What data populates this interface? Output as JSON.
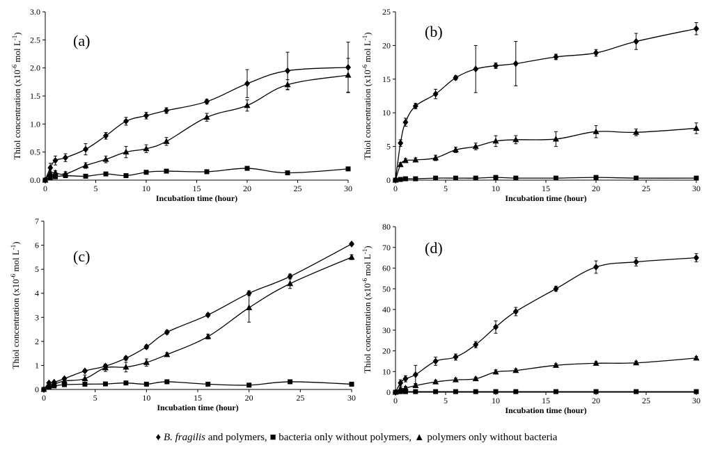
{
  "chart_data": [
    {
      "type": "line",
      "panel_label": "(a)",
      "xlabel": "Incubation time (hour)",
      "ylabel": "Thiol concentration (x10-6 mol L-1)",
      "ylabel_parts": [
        "Thiol concentration (x10",
        "-6",
        " mol L",
        "-1",
        ")"
      ],
      "xlim": [
        0,
        30
      ],
      "ylim": [
        0,
        3
      ],
      "xticks": [
        0,
        5,
        10,
        15,
        20,
        25,
        30
      ],
      "yticks": [
        0,
        0.5,
        1,
        1.5,
        2,
        2.5,
        3
      ],
      "ytick_labels": [
        "0.0",
        "0.5",
        "1.0",
        "1.5",
        "2.0",
        "2.5",
        "3.0"
      ],
      "series": [
        {
          "marker": "diamond",
          "x": [
            0,
            0.5,
            1,
            2,
            4,
            6,
            8,
            10,
            12,
            16,
            20,
            24,
            30
          ],
          "y": [
            0,
            0.22,
            0.35,
            0.4,
            0.55,
            0.79,
            1.05,
            1.15,
            1.24,
            1.4,
            1.72,
            1.95,
            2.01
          ],
          "err": [
            0,
            0.08,
            0.08,
            0.07,
            0.1,
            0.06,
            0.07,
            0.06,
            0.05,
            0.04,
            0.25,
            0.33,
            0.45
          ]
        },
        {
          "marker": "square",
          "x": [
            0,
            0.5,
            1,
            2,
            4,
            6,
            8,
            10,
            12,
            16,
            20,
            24,
            30
          ],
          "y": [
            0,
            0.05,
            0.06,
            0.08,
            0.07,
            0.11,
            0.08,
            0.14,
            0.16,
            0.15,
            0.21,
            0.13,
            0.2
          ],
          "err": [
            0,
            0,
            0,
            0,
            0,
            0,
            0,
            0,
            0,
            0,
            0,
            0,
            0
          ]
        },
        {
          "marker": "triangle",
          "x": [
            0,
            0.5,
            1,
            2,
            4,
            6,
            8,
            10,
            12,
            16,
            20,
            24,
            30
          ],
          "y": [
            0,
            0.12,
            0.13,
            0.11,
            0.26,
            0.37,
            0.5,
            0.56,
            0.69,
            1.12,
            1.33,
            1.7,
            1.87
          ],
          "err": [
            0,
            0.04,
            0.04,
            0.04,
            0.05,
            0.06,
            0.1,
            0.07,
            0.07,
            0.07,
            0.1,
            0.09,
            0.3
          ]
        }
      ]
    },
    {
      "type": "line",
      "panel_label": "(b)",
      "xlabel": "Incubation time (hour)",
      "ylabel": "Thiol concentration (x10-6 mol L-1)",
      "ylabel_parts": [
        "Thiol concentration (x10",
        "-6",
        " mol L",
        "-1",
        ")"
      ],
      "xlim": [
        0,
        30
      ],
      "ylim": [
        0,
        25
      ],
      "xticks": [
        0,
        5,
        10,
        15,
        20,
        25,
        30
      ],
      "yticks": [
        0,
        5,
        10,
        15,
        20,
        25
      ],
      "ytick_labels": [
        "0",
        "5",
        "10",
        "15",
        "20",
        "25"
      ],
      "series": [
        {
          "marker": "diamond",
          "x": [
            0,
            0.5,
            1,
            2,
            4,
            6,
            8,
            10,
            12,
            16,
            20,
            24,
            30
          ],
          "y": [
            0,
            5.5,
            8.6,
            11,
            12.8,
            15.2,
            16.5,
            17,
            17.3,
            18.3,
            18.9,
            20.6,
            22.5
          ],
          "err": [
            0,
            0.5,
            0.6,
            0.4,
            0.7,
            0.3,
            3.5,
            0.4,
            3.3,
            0.4,
            0.5,
            1.2,
            0.9
          ]
        },
        {
          "marker": "square",
          "x": [
            0,
            0.5,
            1,
            2,
            4,
            6,
            8,
            10,
            12,
            16,
            20,
            24,
            30
          ],
          "y": [
            0,
            0.1,
            0.2,
            0.2,
            0.3,
            0.3,
            0.3,
            0.4,
            0.3,
            0.3,
            0.4,
            0.3,
            0.3
          ],
          "err": [
            0,
            0,
            0,
            0,
            0,
            0,
            0,
            0,
            0,
            0,
            0,
            0,
            0
          ]
        },
        {
          "marker": "triangle",
          "x": [
            0,
            0.5,
            1,
            2,
            4,
            6,
            8,
            10,
            12,
            16,
            20,
            24,
            30
          ],
          "y": [
            0,
            2.3,
            2.9,
            3,
            3.3,
            4.5,
            5,
            5.8,
            6,
            6.1,
            7.2,
            7.1,
            7.7
          ],
          "err": [
            0,
            0.3,
            0.3,
            0.3,
            0.4,
            0.4,
            0.5,
            0.8,
            0.6,
            1.1,
            0.9,
            0.5,
            0.8
          ]
        }
      ]
    },
    {
      "type": "line",
      "panel_label": "(c)",
      "xlabel": "Incubation time (hour)",
      "ylabel": "Thiol concentration (x10-6 mol L-1)",
      "ylabel_parts": [
        "Thiol concentration (x10",
        "-6",
        " mol L",
        "-1",
        ")"
      ],
      "xlim": [
        0,
        30
      ],
      "ylim": [
        0,
        7
      ],
      "xticks": [
        0,
        5,
        10,
        15,
        20,
        25,
        30
      ],
      "yticks": [
        0,
        1,
        2,
        3,
        4,
        5,
        6,
        7
      ],
      "ytick_labels": [
        "0",
        "1",
        "2",
        "3",
        "4",
        "5",
        "6",
        "7"
      ],
      "series": [
        {
          "marker": "diamond",
          "x": [
            0,
            0.5,
            1,
            2,
            4,
            6,
            8,
            10,
            12,
            16,
            20,
            24,
            30
          ],
          "y": [
            0,
            0.27,
            0.3,
            0.45,
            0.77,
            0.97,
            1.3,
            1.77,
            2.38,
            3.1,
            4,
            4.7,
            6.05
          ],
          "err": [
            0,
            0.05,
            0.05,
            0.05,
            0.06,
            0.06,
            0.08,
            0.08,
            0.08,
            0.07,
            0.1,
            0.1,
            0.06
          ]
        },
        {
          "marker": "square",
          "x": [
            0,
            0.5,
            1,
            2,
            4,
            6,
            8,
            10,
            12,
            16,
            20,
            24,
            30
          ],
          "y": [
            0,
            0.1,
            0.15,
            0.2,
            0.22,
            0.23,
            0.27,
            0.22,
            0.32,
            0.22,
            0.18,
            0.32,
            0.22
          ],
          "err": [
            0,
            0,
            0,
            0,
            0,
            0,
            0,
            0,
            0,
            0,
            0,
            0,
            0
          ]
        },
        {
          "marker": "triangle",
          "x": [
            0,
            0.5,
            1,
            2,
            4,
            6,
            8,
            10,
            12,
            16,
            20,
            24,
            30
          ],
          "y": [
            0,
            0.18,
            0.22,
            0.35,
            0.45,
            0.9,
            0.93,
            1.12,
            1.45,
            2.2,
            3.4,
            4.4,
            5.5
          ],
          "err": [
            0,
            0.05,
            0.05,
            0.07,
            0.15,
            0.15,
            0.2,
            0.15,
            0.08,
            0.1,
            0.6,
            0.2,
            0.1
          ]
        }
      ]
    },
    {
      "type": "line",
      "panel_label": "(d)",
      "xlabel": "Incubation time (hour)",
      "ylabel": "Thiol concentration (x10-6 mol L-1)",
      "ylabel_parts": [
        "Thiol concentration (x10",
        "-6",
        " mol L",
        "-1",
        ")"
      ],
      "xlim": [
        0,
        30
      ],
      "ylim": [
        0,
        80
      ],
      "xticks": [
        0,
        5,
        10,
        15,
        20,
        25,
        30
      ],
      "yticks": [
        0,
        10,
        20,
        30,
        40,
        50,
        60,
        70,
        80
      ],
      "ytick_labels": [
        "0",
        "10",
        "20",
        "30",
        "40",
        "50",
        "60",
        "70",
        "80"
      ],
      "series": [
        {
          "marker": "diamond",
          "x": [
            0,
            0.5,
            1,
            2,
            4,
            6,
            8,
            10,
            12,
            16,
            20,
            24,
            30
          ],
          "y": [
            0,
            4.5,
            6.5,
            8.5,
            15,
            17,
            23,
            31.5,
            39,
            50,
            60.5,
            63,
            65
          ],
          "err": [
            0,
            1.5,
            1.5,
            4.5,
            2,
            1.5,
            1.5,
            3,
            2,
            1.2,
            3,
            2,
            2
          ]
        },
        {
          "marker": "square",
          "x": [
            0,
            0.5,
            1,
            2,
            4,
            6,
            8,
            10,
            12,
            16,
            20,
            24,
            30
          ],
          "y": [
            0,
            0.3,
            0.3,
            0.3,
            0.3,
            0.3,
            0.3,
            0.3,
            0.3,
            0.3,
            0.3,
            0.3,
            0.3
          ],
          "err": [
            0,
            0,
            0,
            0,
            0,
            0,
            0,
            0,
            0,
            0,
            0,
            0,
            0
          ]
        },
        {
          "marker": "triangle",
          "x": [
            0,
            0.5,
            1,
            2,
            4,
            6,
            8,
            10,
            12,
            16,
            20,
            24,
            30
          ],
          "y": [
            0,
            1.5,
            2,
            3.2,
            5,
            6,
            6.5,
            9.8,
            10.5,
            13,
            14,
            14.2,
            16.5
          ],
          "err": [
            0,
            0.8,
            0.8,
            1,
            0.8,
            0.8,
            0.8,
            1,
            0.8,
            0.8,
            0.8,
            0.8,
            0.8
          ]
        }
      ]
    }
  ],
  "legend": {
    "items": [
      {
        "marker": "diamond",
        "italic": "B. fragilis",
        "text": " and polymers,"
      },
      {
        "marker": "square",
        "italic": "",
        "text": " bacteria only without polymers,"
      },
      {
        "marker": "triangle",
        "italic": "",
        "text": " polymers only without bacteria"
      }
    ]
  }
}
